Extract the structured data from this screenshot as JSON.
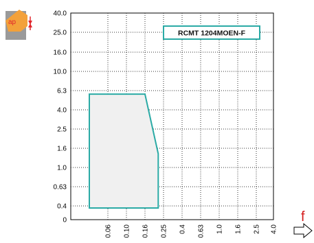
{
  "colors": {
    "series_stroke": "#2aaaa5",
    "series_fill": "#f0f0f0",
    "icon_orange": "#f3a13a",
    "icon_gray": "#9a9a9a",
    "icon_red": "#e0262c",
    "f_color": "#d41c1c"
  },
  "icons": {
    "depth_icon": "depth-of-cut-icon",
    "feed_arrow": "right-arrow-icon"
  },
  "chart_data": {
    "type": "area",
    "title": "",
    "legend": {
      "label": "RCMT 1204MOEN-F",
      "placement": "top-right"
    },
    "xlabel": "f",
    "ylabel": "ap",
    "x_ticks": [
      "0.06",
      "0.10",
      "0.16",
      "0.25",
      "0.4",
      "0.63",
      "1.0",
      "1.6",
      "2.5",
      "4.0"
    ],
    "y_ticks": [
      "0",
      "0.4",
      "0.63",
      "1.0",
      "1.6",
      "2.5",
      "4.0",
      "6.3",
      "10.0",
      "16.0",
      "25.0",
      "40.0"
    ],
    "scale": "logarithmic (step ticks)",
    "grid": true,
    "series": [
      {
        "name": "RCMT 1204MOEN-F",
        "x": [
          0.05,
          0.05,
          0.16,
          0.22,
          0.22
        ],
        "y": [
          0.34,
          5.8,
          5.8,
          1.4,
          0.34
        ]
      }
    ]
  }
}
